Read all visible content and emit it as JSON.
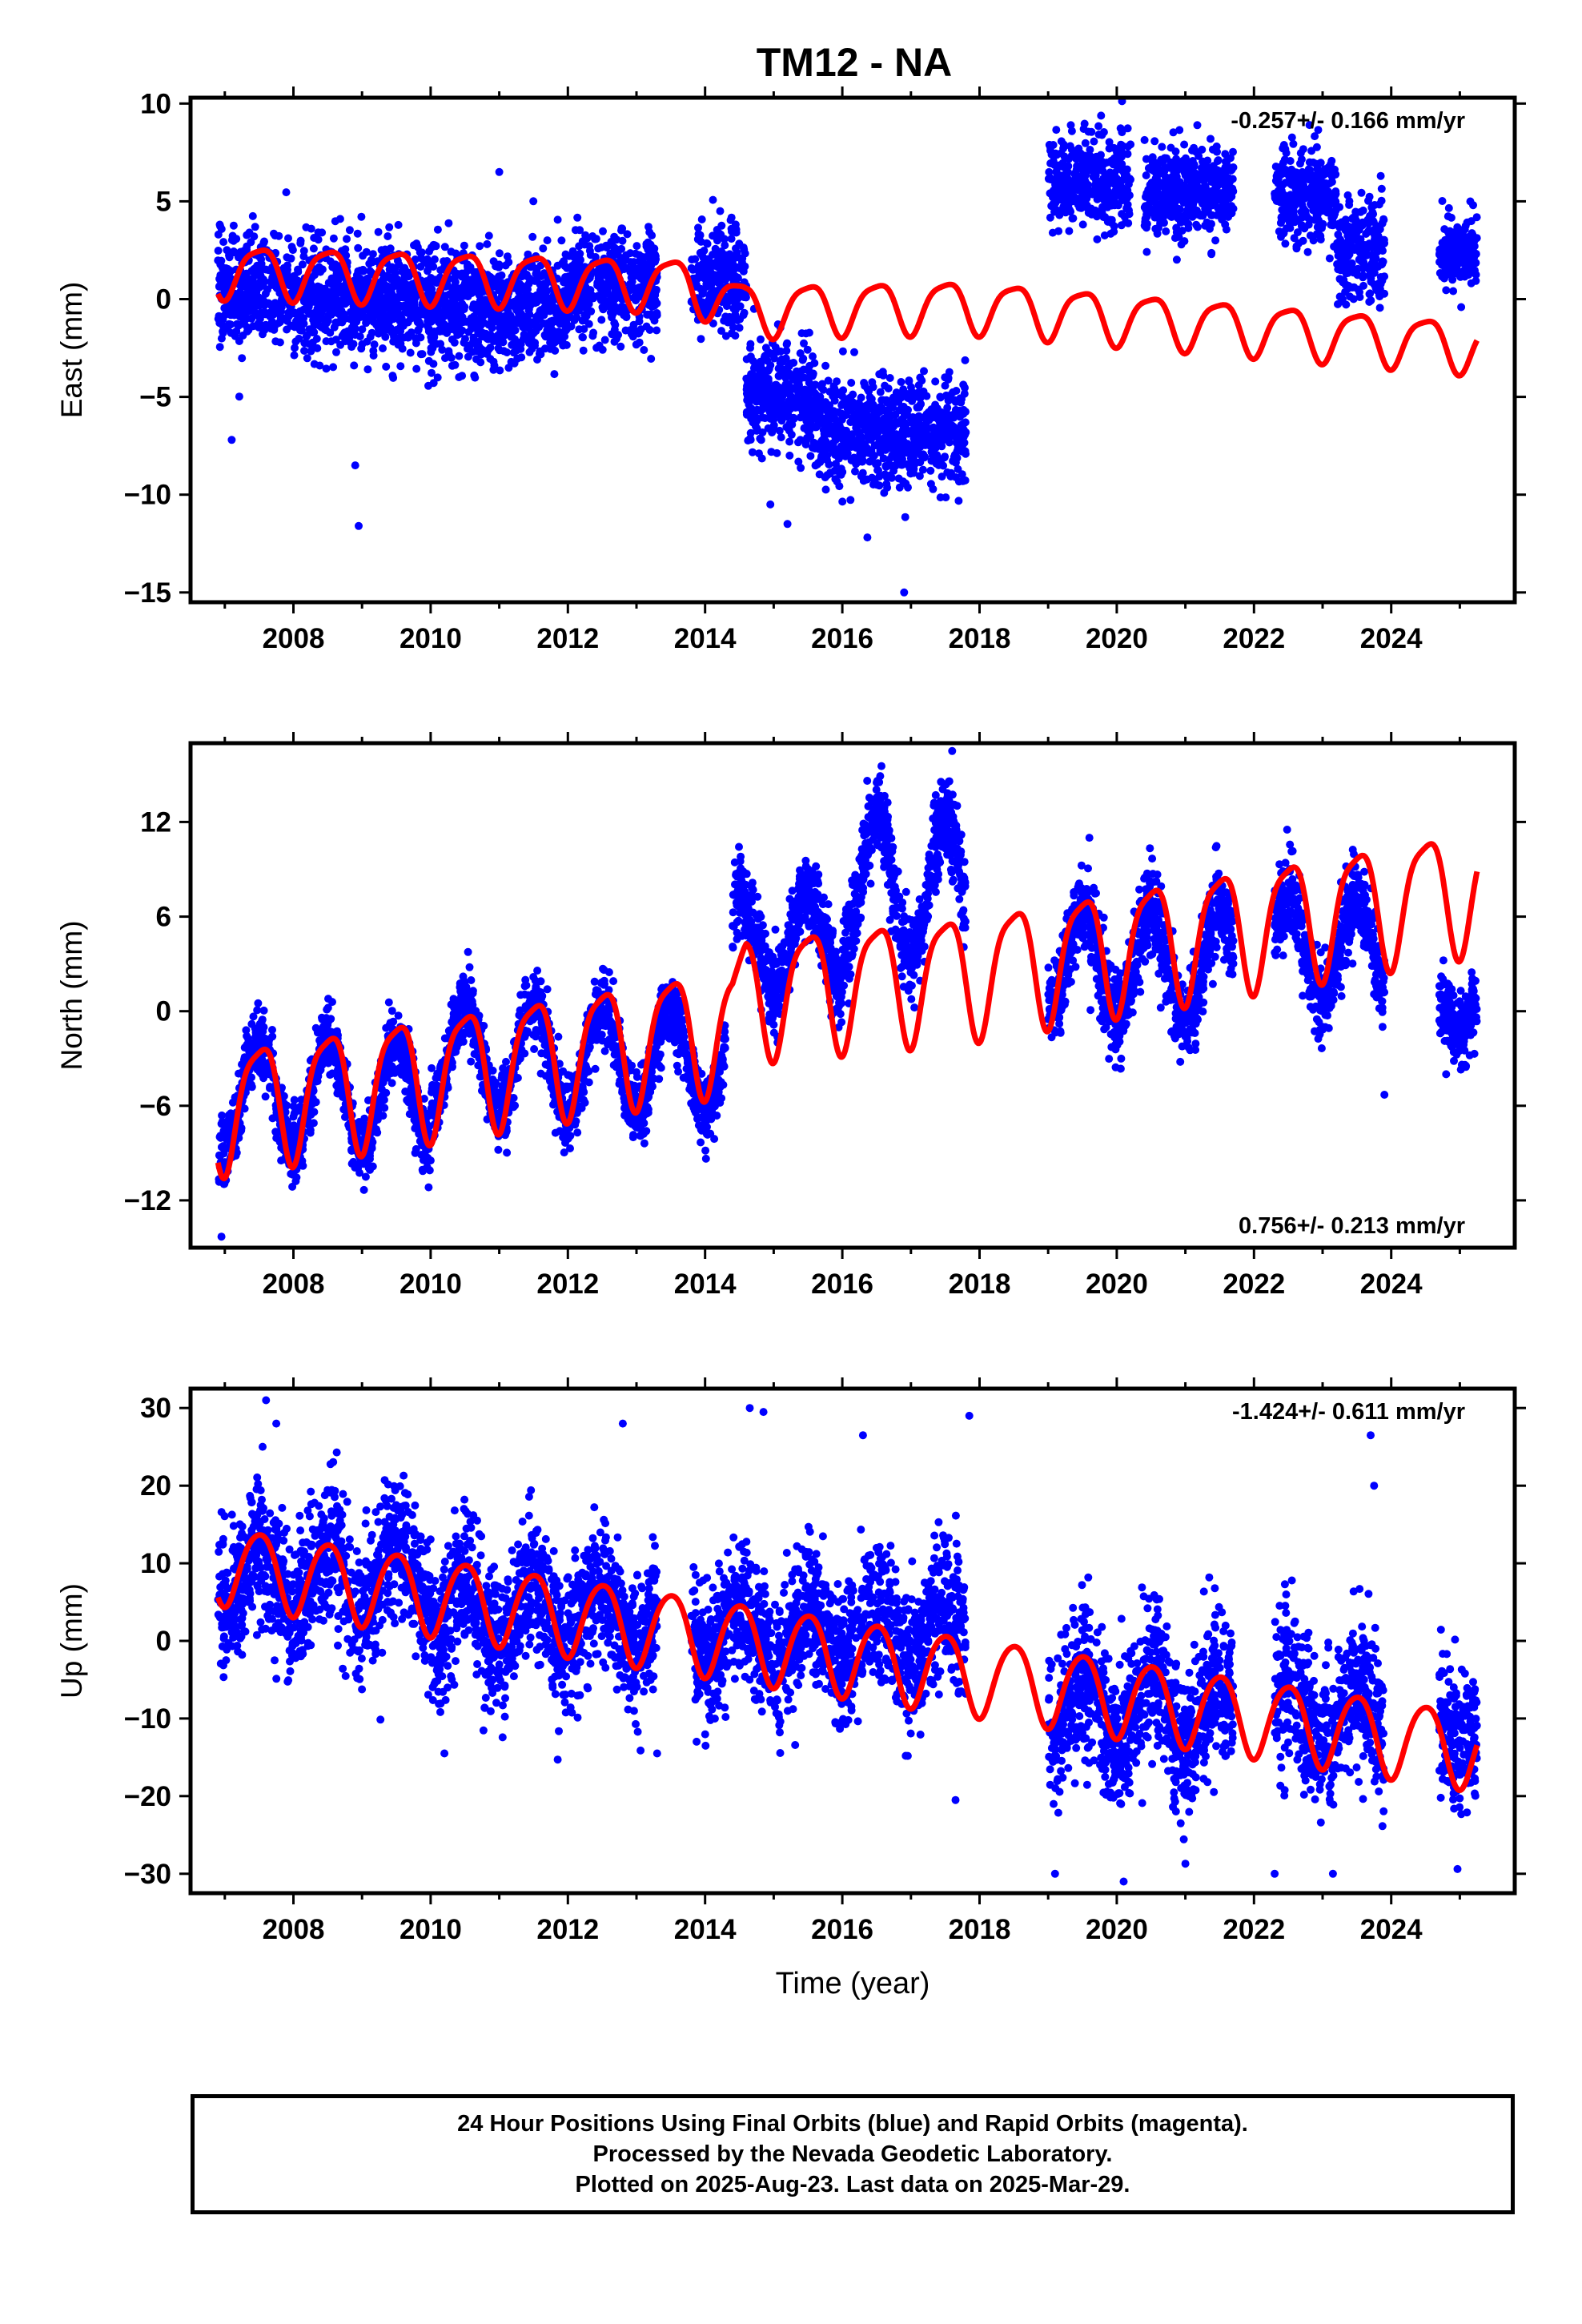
{
  "title": "TM12 - NA",
  "footer": {
    "lines": [
      "24 Hour Positions Using Final Orbits (blue) and Rapid Orbits (magenta).",
      "Processed by the Nevada Geodetic Laboratory.",
      "Plotted on 2025-Aug-23. Last data on 2025-Mar-29."
    ]
  },
  "colors": {
    "final_orbits": "#0000ff",
    "model_fit": "#ff0000",
    "axes": "#000000"
  },
  "chart_data": [
    {
      "type": "scatter",
      "panel": "east",
      "ylabel": "East (mm)",
      "xlim": [
        2006.5,
        2025.8
      ],
      "ylim": [
        -15.5,
        10.3
      ],
      "xticks": [
        2008,
        2010,
        2012,
        2014,
        2016,
        2018,
        2020,
        2022,
        2024
      ],
      "yticks": [
        10,
        5,
        0,
        -5,
        -10,
        -15
      ],
      "ytick_labels": [
        "10",
        "5",
        "0",
        "−5",
        "−10",
        "−15"
      ],
      "annotation": "-0.257+/- 0.166 mm/yr",
      "annotation_position": "top-right",
      "data_segments": [
        {
          "start": 2006.9,
          "end": 2008.0,
          "mean": 0.5,
          "spread": 1.4
        },
        {
          "start": 2008.0,
          "end": 2010.0,
          "mean": 0.0,
          "spread": 1.5
        },
        {
          "start": 2010.0,
          "end": 2012.0,
          "mean": -0.3,
          "spread": 1.5
        },
        {
          "start": 2012.0,
          "end": 2013.3,
          "mean": 0.8,
          "spread": 1.3
        },
        {
          "start": 2013.8,
          "end": 2014.6,
          "mean": 1.0,
          "spread": 1.3
        },
        {
          "start": 2014.6,
          "end": 2015.6,
          "mean": -5.0,
          "spread": 1.4
        },
        {
          "start": 2015.6,
          "end": 2017.8,
          "mean": -6.8,
          "spread": 1.4
        },
        {
          "start": 2019.0,
          "end": 2020.2,
          "mean": 6.0,
          "spread": 1.2
        },
        {
          "start": 2020.4,
          "end": 2021.7,
          "mean": 5.5,
          "spread": 1.1
        },
        {
          "start": 2022.3,
          "end": 2023.2,
          "mean": 5.2,
          "spread": 1.2
        },
        {
          "start": 2023.2,
          "end": 2023.9,
          "mean": 2.5,
          "spread": 1.3
        },
        {
          "start": 2024.7,
          "end": 2025.25,
          "mean": 2.4,
          "spread": 1.0
        }
      ],
      "outliers": [
        [
          2007.1,
          -7.2
        ],
        [
          2008.95,
          -11.6
        ],
        [
          2008.9,
          -8.5
        ],
        [
          2016.9,
          -15.0
        ],
        [
          2015.2,
          -11.5
        ],
        [
          2011.0,
          6.5
        ],
        [
          2014.95,
          -10.5
        ]
      ],
      "model": {
        "start": 2006.9,
        "end": 2025.25,
        "nodes": [
          [
            2006.9,
            1.5
          ],
          [
            2013.75,
            0.8
          ],
          [
            2014.6,
            -0.5
          ],
          [
            2017.8,
            -0.3
          ],
          [
            2025.25,
            -2.4
          ]
        ],
        "annual_amplitude": 1.3,
        "semiannual_amplitude": 0.3
      }
    },
    {
      "type": "scatter",
      "panel": "north",
      "ylabel": "North (mm)",
      "xlim": [
        2006.5,
        2025.8
      ],
      "ylim": [
        -15,
        17
      ],
      "xticks": [
        2008,
        2010,
        2012,
        2014,
        2016,
        2018,
        2020,
        2022,
        2024
      ],
      "yticks": [
        12,
        6,
        0,
        -6,
        -12
      ],
      "ytick_labels": [
        "12",
        "6",
        "0",
        "−6",
        "−12"
      ],
      "annotation": "0.756+/- 0.213 mm/yr",
      "annotation_position": "bottom-right",
      "data_segments": [
        {
          "start": 2006.9,
          "end": 2010.0,
          "mean": -5.3,
          "spread": 1.1,
          "seasonal": 3.5
        },
        {
          "start": 2010.0,
          "end": 2014.3,
          "mean": -3.0,
          "spread": 1.1,
          "seasonal": 3.4
        },
        {
          "start": 2014.4,
          "end": 2016.0,
          "mean": 4.5,
          "spread": 1.3,
          "seasonal": 3.0
        },
        {
          "start": 2016.0,
          "end": 2017.8,
          "mean": 8.0,
          "spread": 1.4,
          "seasonal": 4.5
        },
        {
          "start": 2019.0,
          "end": 2021.7,
          "mean": 3.0,
          "spread": 1.4,
          "seasonal": 3.5
        },
        {
          "start": 2022.3,
          "end": 2023.9,
          "mean": 4.0,
          "spread": 1.4,
          "seasonal": 3.0
        },
        {
          "start": 2024.7,
          "end": 2025.25,
          "mean": 0.5,
          "spread": 1.2,
          "seasonal": 1.5
        }
      ],
      "outliers": [
        [
          2006.95,
          -14.3
        ],
        [
          2017.6,
          16.5
        ],
        [
          2016.5,
          14.5
        ],
        [
          2023.9,
          -5.3
        ],
        [
          2024.8,
          -4.0
        ],
        [
          2019.6,
          11.0
        ]
      ],
      "model": {
        "start": 2006.9,
        "end": 2025.25,
        "nodes": [
          [
            2006.9,
            -6.0
          ],
          [
            2014.4,
            -0.8
          ],
          [
            2014.6,
            1.2
          ],
          [
            2017.8,
            2.5
          ],
          [
            2025.25,
            8.0
          ]
        ],
        "annual_amplitude": 3.8,
        "semiannual_amplitude": 0.9
      }
    },
    {
      "type": "scatter",
      "panel": "up",
      "ylabel": "Up (mm)",
      "xlabel": "Time (year)",
      "xlim": [
        2006.5,
        2025.8
      ],
      "ylim": [
        -32.5,
        32.5
      ],
      "xticks": [
        2008,
        2010,
        2012,
        2014,
        2016,
        2018,
        2020,
        2022,
        2024
      ],
      "yticks": [
        30,
        20,
        10,
        0,
        -10,
        -20,
        -30
      ],
      "ytick_labels": [
        "30",
        "20",
        "10",
        "0",
        "−10",
        "−20",
        "−30"
      ],
      "annotation": "-1.424+/- 0.611 mm/yr",
      "annotation_position": "top-right",
      "data_segments": [
        {
          "start": 2006.9,
          "end": 2010.0,
          "mean": 8.0,
          "spread": 4.5,
          "seasonal": 4.0
        },
        {
          "start": 2010.0,
          "end": 2013.3,
          "mean": 3.5,
          "spread": 4.5,
          "seasonal": 4.0
        },
        {
          "start": 2013.8,
          "end": 2017.8,
          "mean": 1.0,
          "spread": 4.5,
          "seasonal": 3.5
        },
        {
          "start": 2019.0,
          "end": 2021.7,
          "mean": -9.0,
          "spread": 4.8,
          "seasonal": 4.0
        },
        {
          "start": 2022.3,
          "end": 2023.9,
          "mean": -10.0,
          "spread": 4.8,
          "seasonal": 4.0
        },
        {
          "start": 2024.7,
          "end": 2025.25,
          "mean": -10.5,
          "spread": 4.5,
          "seasonal": 2.5
        }
      ],
      "outliers": [
        [
          2007.6,
          31.0
        ],
        [
          2007.75,
          28.0
        ],
        [
          2012.8,
          28.0
        ],
        [
          2014.65,
          30.0
        ],
        [
          2014.85,
          29.5
        ],
        [
          2016.3,
          26.5
        ],
        [
          2017.85,
          29.0
        ],
        [
          2023.7,
          26.5
        ],
        [
          2023.75,
          20.0
        ],
        [
          2020.1,
          -31.0
        ],
        [
          2019.1,
          -30.0
        ],
        [
          2022.3,
          -30.0
        ],
        [
          2023.15,
          -30.0
        ],
        [
          2010.2,
          -14.5
        ],
        [
          2013.3,
          -14.5
        ],
        [
          2017.65,
          -20.5
        ]
      ],
      "model": {
        "start": 2006.9,
        "end": 2025.25,
        "nodes": [
          [
            2006.9,
            10.0
          ],
          [
            2025.25,
            -14.0
          ]
        ],
        "annual_amplitude": 5.0,
        "semiannual_amplitude": 0.6
      }
    }
  ]
}
